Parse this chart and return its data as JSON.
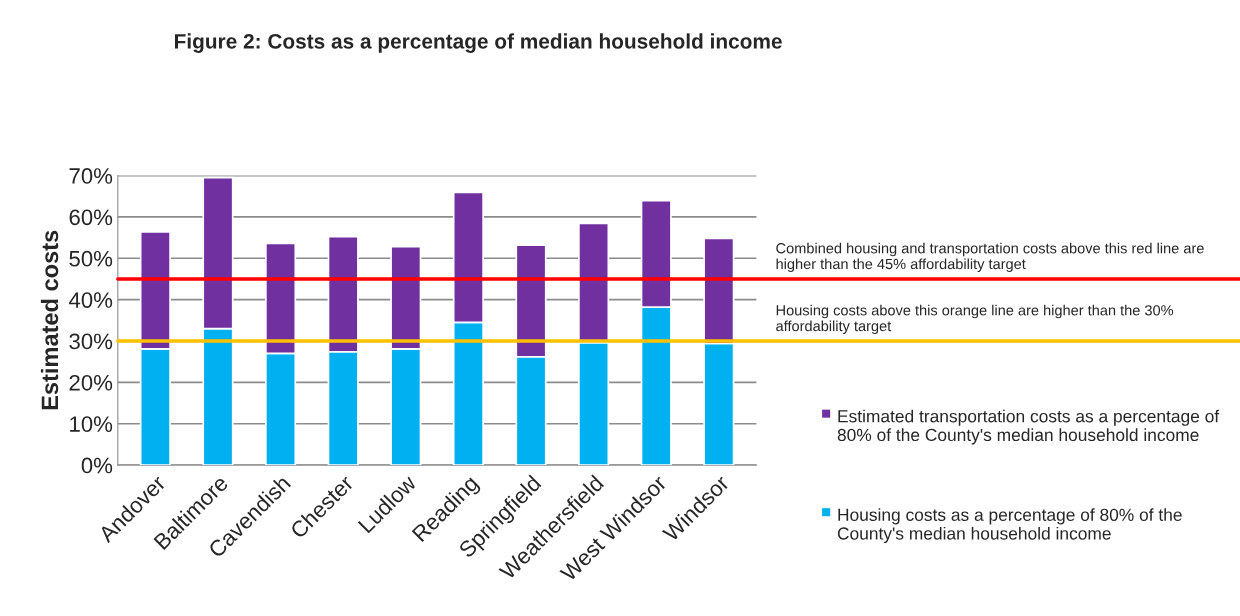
{
  "chart_data": {
    "type": "bar",
    "title": "Figure 2: Costs as a percentage of median household income",
    "ylabel": "Estimated costs",
    "categories": [
      "Andover",
      "Baltimore",
      "Cavendish",
      "Chester",
      "Ludlow",
      "Reading",
      "Springfield",
      "Weathersfield",
      "West Windsor",
      "Windsor"
    ],
    "stacked": true,
    "series": [
      {
        "name": "Housing costs as a percentage of 80% of the County's median household income",
        "color": "#00b0f0",
        "values": [
          28.1,
          33.0,
          27.0,
          27.4,
          28.1,
          34.5,
          26.2,
          29.6,
          38.2,
          29.4
        ]
      },
      {
        "name": "Estimated transportation costs as a percentage of 80% of the County's median household income",
        "color": "#7030a0",
        "values": [
          28.3,
          36.5,
          26.6,
          27.8,
          24.7,
          31.4,
          27.0,
          28.8,
          25.7,
          25.4
        ]
      }
    ],
    "ylim": [
      0,
      70
    ],
    "yticks": [
      {
        "value": 0,
        "label": "0%"
      },
      {
        "value": 10,
        "label": "10%"
      },
      {
        "value": 20,
        "label": "20%"
      },
      {
        "value": 30,
        "label": "30%"
      },
      {
        "value": 40,
        "label": "40%"
      },
      {
        "value": 50,
        "label": "50%"
      },
      {
        "value": 60,
        "label": "60%"
      },
      {
        "value": 70,
        "label": "70%"
      }
    ],
    "ref_lines": [
      {
        "axis": "y",
        "value": 45,
        "label": "Combined housing and transportation costs above this red line are higher than the 45% affordability target",
        "color": "#ff0000"
      },
      {
        "axis": "y",
        "value": 30,
        "label": "Housing costs above this orange line are higher than the 30% affordability target",
        "color": "#ffc000"
      }
    ],
    "grid": "y",
    "legend": "right"
  }
}
